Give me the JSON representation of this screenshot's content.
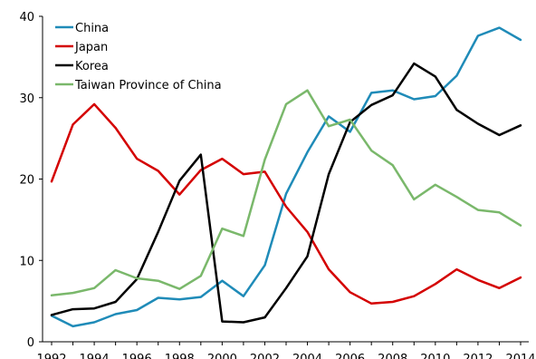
{
  "chart_data": {
    "type": "line",
    "title": "",
    "xlabel": "",
    "ylabel": "",
    "x": [
      1992,
      1993,
      1994,
      1995,
      1996,
      1997,
      1998,
      1999,
      2000,
      2001,
      2002,
      2003,
      2004,
      2005,
      2006,
      2007,
      2008,
      2009,
      2010,
      2011,
      2012,
      2013,
      2014
    ],
    "x_tick_labels": [
      "1992",
      "1994",
      "1996",
      "1998",
      "2000",
      "2002",
      "2004",
      "2006",
      "2008",
      "2010",
      "2012",
      "2014"
    ],
    "y_tick_labels": [
      "0",
      "10",
      "20",
      "30",
      "40"
    ],
    "ylim": [
      0,
      40
    ],
    "grid": false,
    "legend_position": "top-left",
    "series": [
      {
        "name": "China",
        "color": "#1f8bb8",
        "values": [
          3.2,
          1.9,
          2.4,
          3.4,
          3.9,
          5.4,
          5.2,
          5.5,
          7.5,
          5.6,
          9.4,
          18.2,
          23.3,
          27.7,
          25.8,
          30.6,
          30.9,
          29.8,
          30.2,
          32.7,
          37.6,
          38.6,
          37.1
        ]
      },
      {
        "name": "Japan",
        "color": "#d40000",
        "values": [
          19.7,
          26.7,
          29.2,
          26.3,
          22.5,
          21.0,
          18.1,
          21.1,
          22.5,
          20.6,
          20.9,
          16.6,
          13.5,
          8.9,
          6.1,
          4.7,
          4.9,
          5.6,
          7.1,
          8.9,
          7.6,
          6.6,
          7.9
        ]
      },
      {
        "name": "Korea",
        "color": "#000000",
        "values": [
          3.3,
          4.0,
          4.1,
          4.9,
          7.7,
          13.5,
          19.8,
          23.0,
          2.5,
          2.4,
          3.0,
          6.6,
          10.5,
          20.6,
          27.0,
          29.1,
          30.3,
          34.2,
          32.6,
          28.5,
          26.8,
          25.4,
          26.6
        ]
      },
      {
        "name": "Taiwan Province of China",
        "color": "#7ab86b",
        "values": [
          5.7,
          6.0,
          6.6,
          8.8,
          7.8,
          7.5,
          6.5,
          8.1,
          13.9,
          13.0,
          22.4,
          29.2,
          30.9,
          26.5,
          27.3,
          23.5,
          21.7,
          17.5,
          19.3,
          17.8,
          16.2,
          15.9,
          14.3
        ]
      }
    ]
  }
}
